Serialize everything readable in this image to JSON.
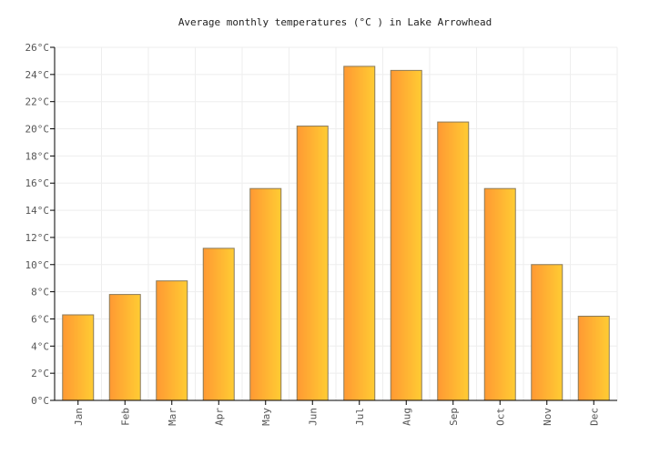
{
  "chart_data": {
    "type": "bar",
    "title": "Average monthly temperatures (°C ) in Lake Arrowhead",
    "categories": [
      "Jan",
      "Feb",
      "Mar",
      "Apr",
      "May",
      "Jun",
      "Jul",
      "Aug",
      "Sep",
      "Oct",
      "Nov",
      "Dec"
    ],
    "series": [
      {
        "values": [
          6.3,
          7.8,
          8.8,
          11.2,
          15.6,
          20.2,
          24.6,
          24.3,
          20.5,
          15.6,
          10.0,
          6.2
        ]
      }
    ],
    "yticks": [
      "0°C",
      "2°C",
      "4°C",
      "6°C",
      "8°C",
      "10°C",
      "12°C",
      "14°C",
      "16°C",
      "18°C",
      "20°C",
      "22°C",
      "24°C",
      "26°C"
    ],
    "ylim": [
      0,
      26
    ],
    "grid": true,
    "colors": {
      "bar_start": "#ff9933",
      "bar_end": "#ffcc33",
      "bar_stroke": "#8a7a5a",
      "grid": "#eeeeee",
      "axis": "#000000"
    }
  }
}
